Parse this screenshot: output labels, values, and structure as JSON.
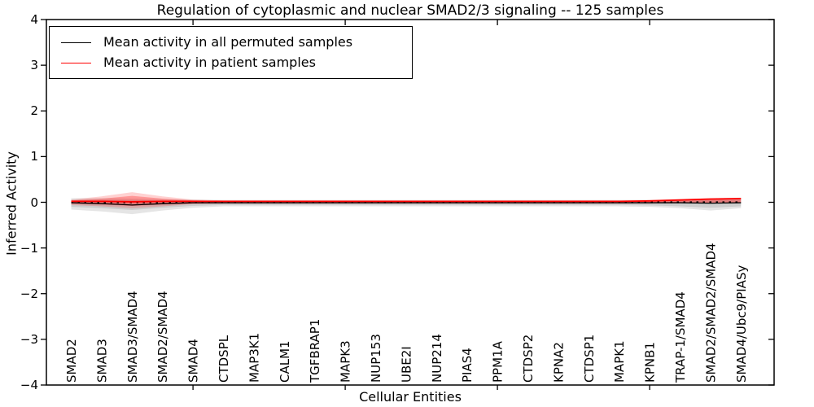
{
  "chart_data": {
    "type": "line",
    "title": "Regulation of cytoplasmic and nuclear SMAD2/3 signaling -- 125 samples",
    "xlabel": "Cellular Entities",
    "ylabel": "Inferred Activity",
    "ylim": [
      -4,
      4
    ],
    "grid": false,
    "legend_position": "upper left",
    "yticks": [
      {
        "value": 4,
        "label": "4"
      },
      {
        "value": 3,
        "label": "3"
      },
      {
        "value": 2,
        "label": "2"
      },
      {
        "value": 1,
        "label": "1"
      },
      {
        "value": 0,
        "label": "0"
      },
      {
        "value": -1,
        "label": "−1"
      },
      {
        "value": -2,
        "label": "−2"
      },
      {
        "value": -3,
        "label": "−3"
      },
      {
        "value": -4,
        "label": "−4"
      }
    ],
    "categories": [
      "SMAD2",
      "SMAD3",
      "SMAD3/SMAD4",
      "SMAD2/SMAD4",
      "SMAD4",
      "CTDSPL",
      "MAP3K1",
      "CALM1",
      "TGFBRAP1",
      "MAPK3",
      "NUP153",
      "UBE2I",
      "NUP214",
      "PIAS4",
      "PPM1A",
      "CTDSP2",
      "KPNA2",
      "CTDSP1",
      "MAPK1",
      "KPNB1",
      "TRAP-1/SMAD4",
      "SMAD2/SMAD2/SMAD4",
      "SMAD4/Ubc9/PIASy"
    ],
    "xticks_major_category_indices": [
      4,
      9,
      14,
      19
    ],
    "series": [
      {
        "name": "Mean activity in all permuted samples",
        "color": "#000000",
        "style": "solid",
        "values": [
          -0.01,
          -0.03,
          -0.06,
          -0.03,
          -0.01,
          -0.01,
          -0.01,
          -0.01,
          -0.01,
          -0.01,
          -0.01,
          -0.01,
          -0.01,
          -0.01,
          -0.01,
          -0.01,
          -0.01,
          -0.01,
          -0.01,
          -0.01,
          -0.01,
          -0.02,
          -0.01
        ]
      },
      {
        "name": "Mean activity in patient samples",
        "color": "#ff0000",
        "style": "solid",
        "values": [
          0.02,
          0.02,
          0.01,
          0.02,
          0.02,
          0.02,
          0.02,
          0.02,
          0.02,
          0.02,
          0.02,
          0.02,
          0.02,
          0.02,
          0.02,
          0.02,
          0.02,
          0.02,
          0.02,
          0.03,
          0.05,
          0.07,
          0.08
        ]
      }
    ],
    "zero_line": {
      "value": 0,
      "color": "#000000",
      "style": "dotted"
    },
    "bands": [
      {
        "name": "permuted-spread-outer",
        "color": "#000000",
        "opacity": 0.1,
        "upper": [
          0.09,
          0.09,
          0.08,
          0.07,
          0.06,
          0.05,
          0.05,
          0.05,
          0.05,
          0.05,
          0.05,
          0.05,
          0.05,
          0.05,
          0.05,
          0.05,
          0.05,
          0.05,
          0.05,
          0.05,
          0.06,
          0.08,
          0.1
        ],
        "lower": [
          -0.16,
          -0.2,
          -0.26,
          -0.18,
          -0.12,
          -0.09,
          -0.09,
          -0.09,
          -0.09,
          -0.09,
          -0.09,
          -0.09,
          -0.09,
          -0.09,
          -0.09,
          -0.09,
          -0.09,
          -0.09,
          -0.09,
          -0.1,
          -0.13,
          -0.18,
          -0.13
        ]
      },
      {
        "name": "permuted-spread-inner",
        "color": "#000000",
        "opacity": 0.1,
        "upper": [
          0.05,
          0.05,
          0.05,
          0.04,
          0.04,
          0.03,
          0.03,
          0.03,
          0.03,
          0.03,
          0.03,
          0.03,
          0.03,
          0.03,
          0.03,
          0.03,
          0.03,
          0.03,
          0.03,
          0.03,
          0.04,
          0.05,
          0.06
        ],
        "lower": [
          -0.1,
          -0.13,
          -0.17,
          -0.12,
          -0.08,
          -0.06,
          -0.06,
          -0.06,
          -0.06,
          -0.06,
          -0.06,
          -0.06,
          -0.06,
          -0.06,
          -0.06,
          -0.06,
          -0.06,
          -0.06,
          -0.06,
          -0.07,
          -0.09,
          -0.12,
          -0.09
        ]
      },
      {
        "name": "patient-spread-outer",
        "color": "#ff0000",
        "opacity": 0.18,
        "upper": [
          0.06,
          0.13,
          0.22,
          0.13,
          0.06,
          0.04,
          0.04,
          0.04,
          0.04,
          0.04,
          0.04,
          0.04,
          0.04,
          0.04,
          0.04,
          0.04,
          0.04,
          0.04,
          0.04,
          0.05,
          0.07,
          0.09,
          0.1
        ],
        "lower": [
          -0.06,
          -0.09,
          -0.13,
          -0.09,
          -0.04,
          -0.03,
          -0.03,
          -0.03,
          -0.03,
          -0.03,
          -0.03,
          -0.03,
          -0.03,
          -0.03,
          -0.03,
          -0.03,
          -0.03,
          -0.03,
          -0.03,
          -0.03,
          -0.02,
          -0.02,
          -0.01
        ]
      },
      {
        "name": "patient-spread-inner",
        "color": "#ff0000",
        "opacity": 0.28,
        "upper": [
          0.04,
          0.08,
          0.14,
          0.08,
          0.04,
          0.03,
          0.03,
          0.03,
          0.03,
          0.03,
          0.03,
          0.03,
          0.03,
          0.03,
          0.03,
          0.03,
          0.03,
          0.03,
          0.03,
          0.03,
          0.04,
          0.05,
          0.06
        ],
        "lower": [
          -0.03,
          -0.05,
          -0.08,
          -0.05,
          -0.03,
          -0.02,
          -0.02,
          -0.02,
          -0.02,
          -0.02,
          -0.02,
          -0.02,
          -0.02,
          -0.02,
          -0.02,
          -0.02,
          -0.02,
          -0.02,
          -0.02,
          -0.02,
          -0.01,
          -0.01,
          0.0
        ]
      }
    ]
  }
}
